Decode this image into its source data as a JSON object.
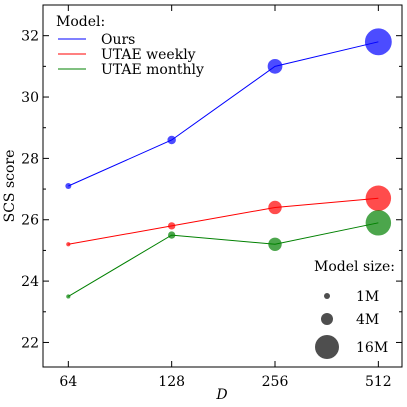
{
  "chart_data": {
    "type": "scatter",
    "xlabel": "D",
    "ylabel": "SCS score",
    "x_scale": "log2",
    "x_ticks": [
      64,
      128,
      256,
      512
    ],
    "y_ticks": [
      22,
      24,
      26,
      28,
      30,
      32
    ],
    "xlim": [
      54,
      600
    ],
    "ylim": [
      21.2,
      33.0
    ],
    "legend": {
      "title": "Model:",
      "position": "top-left"
    },
    "series": [
      {
        "name": "Ours",
        "color": "#0000ff",
        "points": [
          {
            "x": 64,
            "y": 27.1,
            "size": "1M"
          },
          {
            "x": 128,
            "y": 28.6,
            "size": "2M"
          },
          {
            "x": 256,
            "y": 31.0,
            "size": "6M"
          },
          {
            "x": 512,
            "y": 31.8,
            "size": "20M"
          }
        ]
      },
      {
        "name": "UTAE weekly",
        "color": "#ff0000",
        "points": [
          {
            "x": 64,
            "y": 25.2,
            "size": "0.5M"
          },
          {
            "x": 128,
            "y": 25.8,
            "size": "1.5M"
          },
          {
            "x": 256,
            "y": 26.4,
            "size": "5M"
          },
          {
            "x": 512,
            "y": 26.7,
            "size": "18M"
          }
        ]
      },
      {
        "name": "UTAE monthly",
        "color": "#008000",
        "points": [
          {
            "x": 64,
            "y": 23.5,
            "size": "0.5M"
          },
          {
            "x": 128,
            "y": 25.5,
            "size": "1.5M"
          },
          {
            "x": 256,
            "y": 25.2,
            "size": "5M"
          },
          {
            "x": 512,
            "y": 25.9,
            "size": "18M"
          }
        ]
      }
    ],
    "size_legend": {
      "title": "Model size:",
      "position": "bottom-right",
      "entries": [
        {
          "label": "1M",
          "size": 1
        },
        {
          "label": "4M",
          "size": 4
        },
        {
          "label": "16M",
          "size": 16
        }
      ]
    },
    "marker_alpha": 0.7,
    "grid": false
  }
}
